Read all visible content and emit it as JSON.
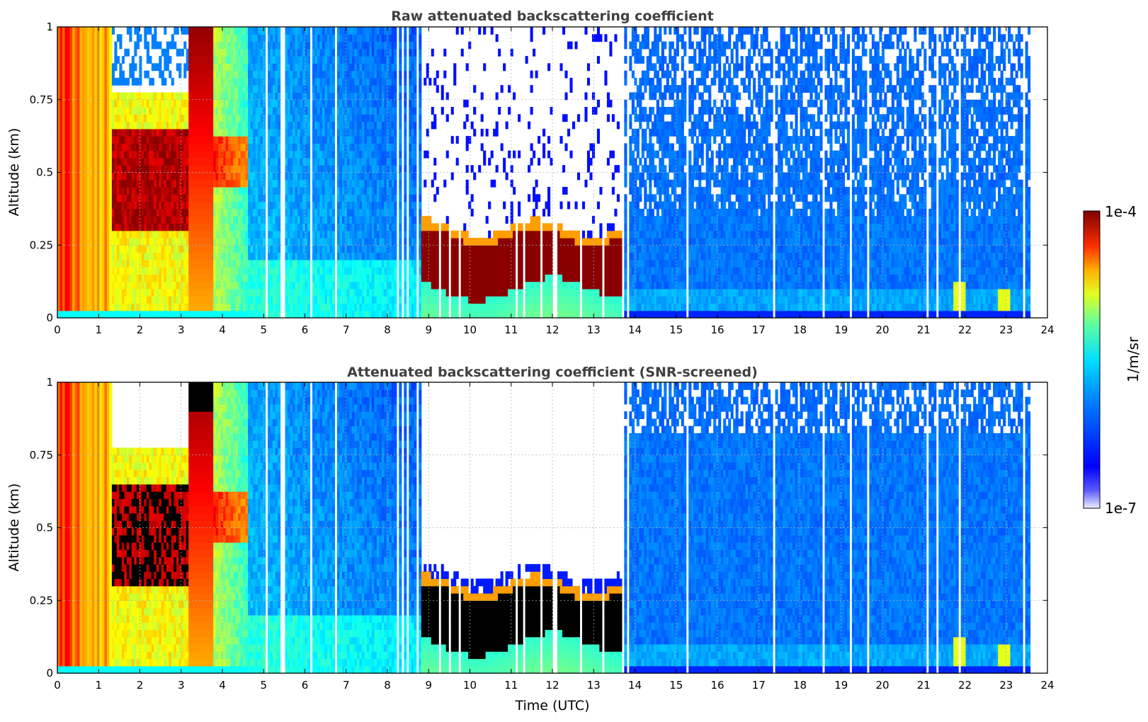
{
  "chart_data": [
    {
      "type": "heatmap",
      "title": "Raw attenuated backscattering coefficient",
      "xlabel": "",
      "ylabel": "Altitude (km)",
      "xlim": [
        0,
        24
      ],
      "ylim": [
        0,
        1
      ],
      "xticks": [
        "0",
        "1",
        "2",
        "3",
        "4",
        "5",
        "6",
        "7",
        "8",
        "9",
        "10",
        "11",
        "12",
        "13",
        "14",
        "15",
        "16",
        "17",
        "18",
        "19",
        "20",
        "21",
        "22",
        "23",
        "24"
      ],
      "yticks": [
        "0",
        "0.25",
        "0.5",
        "0.75",
        "1"
      ],
      "grid": true,
      "data_end_time": 23.55,
      "features": {
        "aerosol_layer_0_5h": {
          "time": [
            0,
            4.6
          ],
          "top_km": 1.0
        },
        "cloud_9_13_7h": {
          "time": [
            8.8,
            13.7
          ],
          "base_km": 0.1,
          "top_km": 0.3
        },
        "noise_above_cloud_km": 0.3,
        "clear_sky_afternoon": {
          "time": [
            13.7,
            23.55
          ]
        }
      }
    },
    {
      "type": "heatmap",
      "title": "Attenuated backscattering coefficient (SNR-screened)",
      "xlabel": "Time (UTC)",
      "ylabel": "Altitude (km)",
      "xlim": [
        0,
        24
      ],
      "ylim": [
        0,
        1
      ],
      "xticks": [
        "0",
        "1",
        "2",
        "3",
        "4",
        "5",
        "6",
        "7",
        "8",
        "9",
        "10",
        "11",
        "12",
        "13",
        "14",
        "15",
        "16",
        "17",
        "18",
        "19",
        "20",
        "21",
        "22",
        "23",
        "24"
      ],
      "yticks": [
        "0",
        "0.25",
        "0.5",
        "0.75",
        "1"
      ],
      "grid": true,
      "saturated_color": "#000000"
    }
  ],
  "colorbar": {
    "max_label": "1e-4",
    "min_label": "1e-7",
    "unit_label": "1/m/sr",
    "colormap": "jet",
    "scale": "log",
    "range": [
      1e-07,
      0.0001
    ]
  }
}
